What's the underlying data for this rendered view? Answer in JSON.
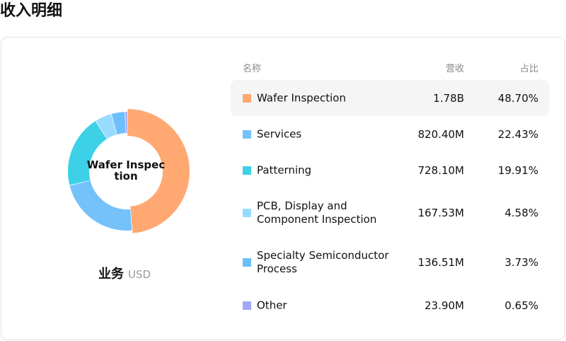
{
  "page": {
    "title": "收入明细"
  },
  "chart_data": {
    "type": "pie",
    "center_label": "Wafer Inspection",
    "caption": {
      "title": "业务",
      "unit": "USD"
    },
    "headers": {
      "name": "名称",
      "revenue": "营收",
      "share": "占比"
    },
    "segments": [
      {
        "name": "Wafer Inspection",
        "revenue": "1.78B",
        "share": "48.70%",
        "value": 48.7,
        "color": "#FFA872"
      },
      {
        "name": "Services",
        "revenue": "820.40M",
        "share": "22.43%",
        "value": 22.43,
        "color": "#75C2FB"
      },
      {
        "name": "Patterning",
        "revenue": "728.10M",
        "share": "19.91%",
        "value": 19.91,
        "color": "#3DD1E7"
      },
      {
        "name": "PCB, Display and Component Inspection",
        "revenue": "167.53M",
        "share": "4.58%",
        "value": 4.58,
        "color": "#99DBFF"
      },
      {
        "name": "Specialty Semiconductor Process",
        "revenue": "136.51M",
        "share": "3.73%",
        "value": 3.73,
        "color": "#6CBFFA"
      },
      {
        "name": "Other",
        "revenue": "23.90M",
        "share": "0.65%",
        "value": 0.65,
        "color": "#A2A6F8"
      }
    ],
    "active_index": 0
  }
}
